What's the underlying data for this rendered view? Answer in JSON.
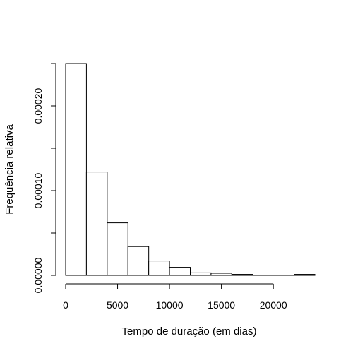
{
  "chart_data": {
    "type": "bar",
    "title": "",
    "xlabel": "Tempo de duração (em dias)",
    "ylabel": "Frequência relativa",
    "bin_width": 2000,
    "bins": [
      {
        "start": 0,
        "end": 2000,
        "density": 0.00025
      },
      {
        "start": 2000,
        "end": 4000,
        "density": 0.000122
      },
      {
        "start": 4000,
        "end": 6000,
        "density": 6.2e-05
      },
      {
        "start": 6000,
        "end": 8000,
        "density": 3.4e-05
      },
      {
        "start": 8000,
        "end": 10000,
        "density": 1.7e-05
      },
      {
        "start": 10000,
        "end": 12000,
        "density": 9.5e-06
      },
      {
        "start": 12000,
        "end": 14000,
        "density": 3e-06
      },
      {
        "start": 14000,
        "end": 16000,
        "density": 2.5e-06
      },
      {
        "start": 16000,
        "end": 18000,
        "density": 1.2e-06
      },
      {
        "start": 18000,
        "end": 20000,
        "density": 3e-07
      },
      {
        "start": 20000,
        "end": 22000,
        "density": 3e-07
      },
      {
        "start": 22000,
        "end": 24000,
        "density": 1.2e-06
      }
    ],
    "xlim": [
      0,
      24000
    ],
    "ylim": [
      0,
      0.00025
    ],
    "x_ticks": [
      0,
      5000,
      10000,
      15000,
      20000
    ],
    "x_tick_labels": [
      "0",
      "5000",
      "10000",
      "15000",
      "20000"
    ],
    "y_ticks": [
      0,
      5e-05,
      0.0001,
      0.00015,
      0.0002,
      0.00025
    ],
    "y_tick_labels": [
      "0.00000",
      "",
      "0.00010",
      "",
      "0.00020",
      ""
    ],
    "grid": false,
    "legend": "none",
    "bar_fill": "#ffffff",
    "bar_stroke": "#000000"
  }
}
